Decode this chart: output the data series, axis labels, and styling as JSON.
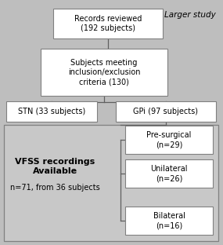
{
  "bg_color": "#bebebe",
  "box_color": "#ffffff",
  "box_edge": "#808080",
  "inner_bg_color": "#c8c8c8",
  "title_text": "Larger study",
  "box1_text": "Records reviewed\n(192 subjects)",
  "box2_text": "Subjects meeting\ninclusion/exclusion\ncriteria (130)",
  "box3_text": "STN (33 subjects)",
  "box4_text": "GPi (97 subjects)",
  "box_vfss_title": "VFSS recordings\nAvailable",
  "box_vfss_sub": "n=71, from 36 subjects",
  "box5_text": "Pre-surgical\n(n=29)",
  "box6_text": "Unilateral\n(n=26)",
  "box7_text": "Bilateral\n(n=16)",
  "line_color": "#606060",
  "fontsize_main": 7.0,
  "fontsize_bold": 7.5,
  "fontsize_title": 7.5
}
